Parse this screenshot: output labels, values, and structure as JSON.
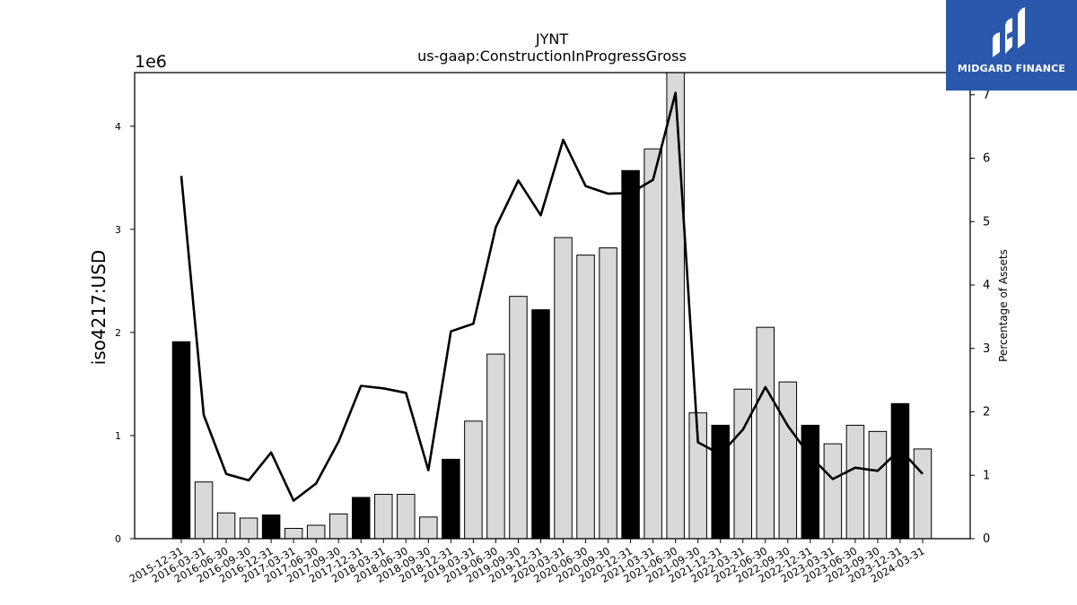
{
  "chart_data": {
    "type": "bar",
    "title": "JYNT",
    "subtitle": "us-gaap:ConstructionInProgressGross",
    "ylabel": "iso4217:USD",
    "ylabel_right": "Percentage of Assets",
    "y_scale_note": "1e6",
    "ylim": [
      0,
      4.52
    ],
    "ylim_right": [
      0,
      7.35
    ],
    "yticks": [
      0,
      1,
      2,
      3,
      4
    ],
    "yticks_right": [
      0,
      1,
      2,
      3,
      4,
      5,
      6,
      7
    ],
    "categories": [
      "2015-12-31",
      "2016-03-31",
      "2016-06-30",
      "2016-09-30",
      "2016-12-31",
      "2017-03-31",
      "2017-06-30",
      "2017-09-30",
      "2017-12-31",
      "2018-03-31",
      "2018-06-30",
      "2018-09-30",
      "2018-12-31",
      "2019-03-31",
      "2019-06-30",
      "2019-09-30",
      "2019-12-31",
      "2020-03-31",
      "2020-06-30",
      "2020-09-30",
      "2020-12-31",
      "2021-03-31",
      "2021-06-30",
      "2021-09-30",
      "2021-12-31",
      "2022-03-31",
      "2022-06-30",
      "2022-09-30",
      "2022-12-31",
      "2023-03-31",
      "2023-06-30",
      "2023-09-30",
      "2023-12-31",
      "2024-03-31"
    ],
    "series": [
      {
        "kind": "bar",
        "axis": "left",
        "values": [
          1.91,
          0.55,
          0.25,
          0.2,
          0.23,
          0.1,
          0.13,
          0.24,
          0.4,
          0.43,
          0.43,
          0.21,
          0.77,
          1.14,
          1.79,
          2.35,
          2.22,
          2.92,
          2.75,
          2.82,
          3.57,
          3.78,
          4.52,
          1.22,
          1.1,
          1.45,
          2.05,
          1.52,
          1.1,
          0.92,
          1.1,
          1.04,
          1.31,
          0.87
        ],
        "highlight": [
          true,
          false,
          false,
          false,
          true,
          false,
          false,
          false,
          true,
          false,
          false,
          false,
          true,
          false,
          false,
          false,
          true,
          false,
          false,
          false,
          true,
          false,
          false,
          false,
          true,
          false,
          false,
          false,
          true,
          false,
          false,
          false,
          true,
          false
        ]
      },
      {
        "kind": "line",
        "axis": "right",
        "values": [
          5.72,
          1.95,
          1.02,
          0.92,
          1.36,
          0.6,
          0.87,
          1.53,
          2.41,
          2.37,
          2.3,
          1.08,
          3.27,
          3.39,
          4.91,
          5.65,
          5.1,
          6.29,
          5.56,
          5.44,
          5.45,
          5.66,
          7.03,
          1.52,
          1.33,
          1.72,
          2.39,
          1.78,
          1.3,
          0.94,
          1.12,
          1.07,
          1.41,
          1.02
        ]
      }
    ],
    "colors": {
      "highlight_bar": "#000000",
      "bar": "#d9d9d9",
      "bar_edge": "#000000",
      "line": "#000000"
    }
  },
  "logo": {
    "text": "MIDGARD FINANCE",
    "background": "#2b58ac"
  }
}
